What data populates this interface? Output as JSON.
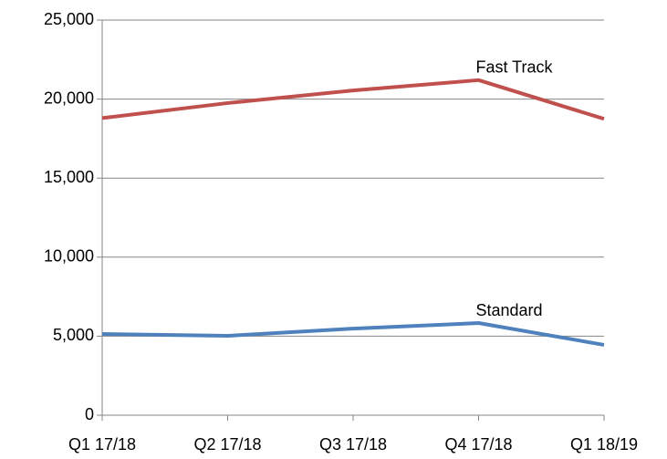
{
  "chart_data": {
    "type": "line",
    "categories": [
      "Q1 17/18",
      "Q2 17/18",
      "Q3 17/18",
      "Q4 17/18",
      "Q1 18/19"
    ],
    "series": [
      {
        "name": "Fast Track",
        "color": "#c0504d",
        "values": [
          18800,
          19750,
          20550,
          21200,
          18750
        ]
      },
      {
        "name": "Standard",
        "color": "#4f81bd",
        "values": [
          5140,
          5020,
          5480,
          5830,
          4450
        ]
      }
    ],
    "ylim": [
      0,
      25000
    ],
    "yticks": [
      0,
      {
        "value": 5000,
        "label": "5,000"
      },
      {
        "value": 10000,
        "label": "10,000"
      },
      {
        "value": 15000,
        "label": "15,000"
      },
      {
        "value": 20000,
        "label": "20,000"
      },
      {
        "value": 25000,
        "label": "25,000"
      }
    ],
    "grid": true
  }
}
